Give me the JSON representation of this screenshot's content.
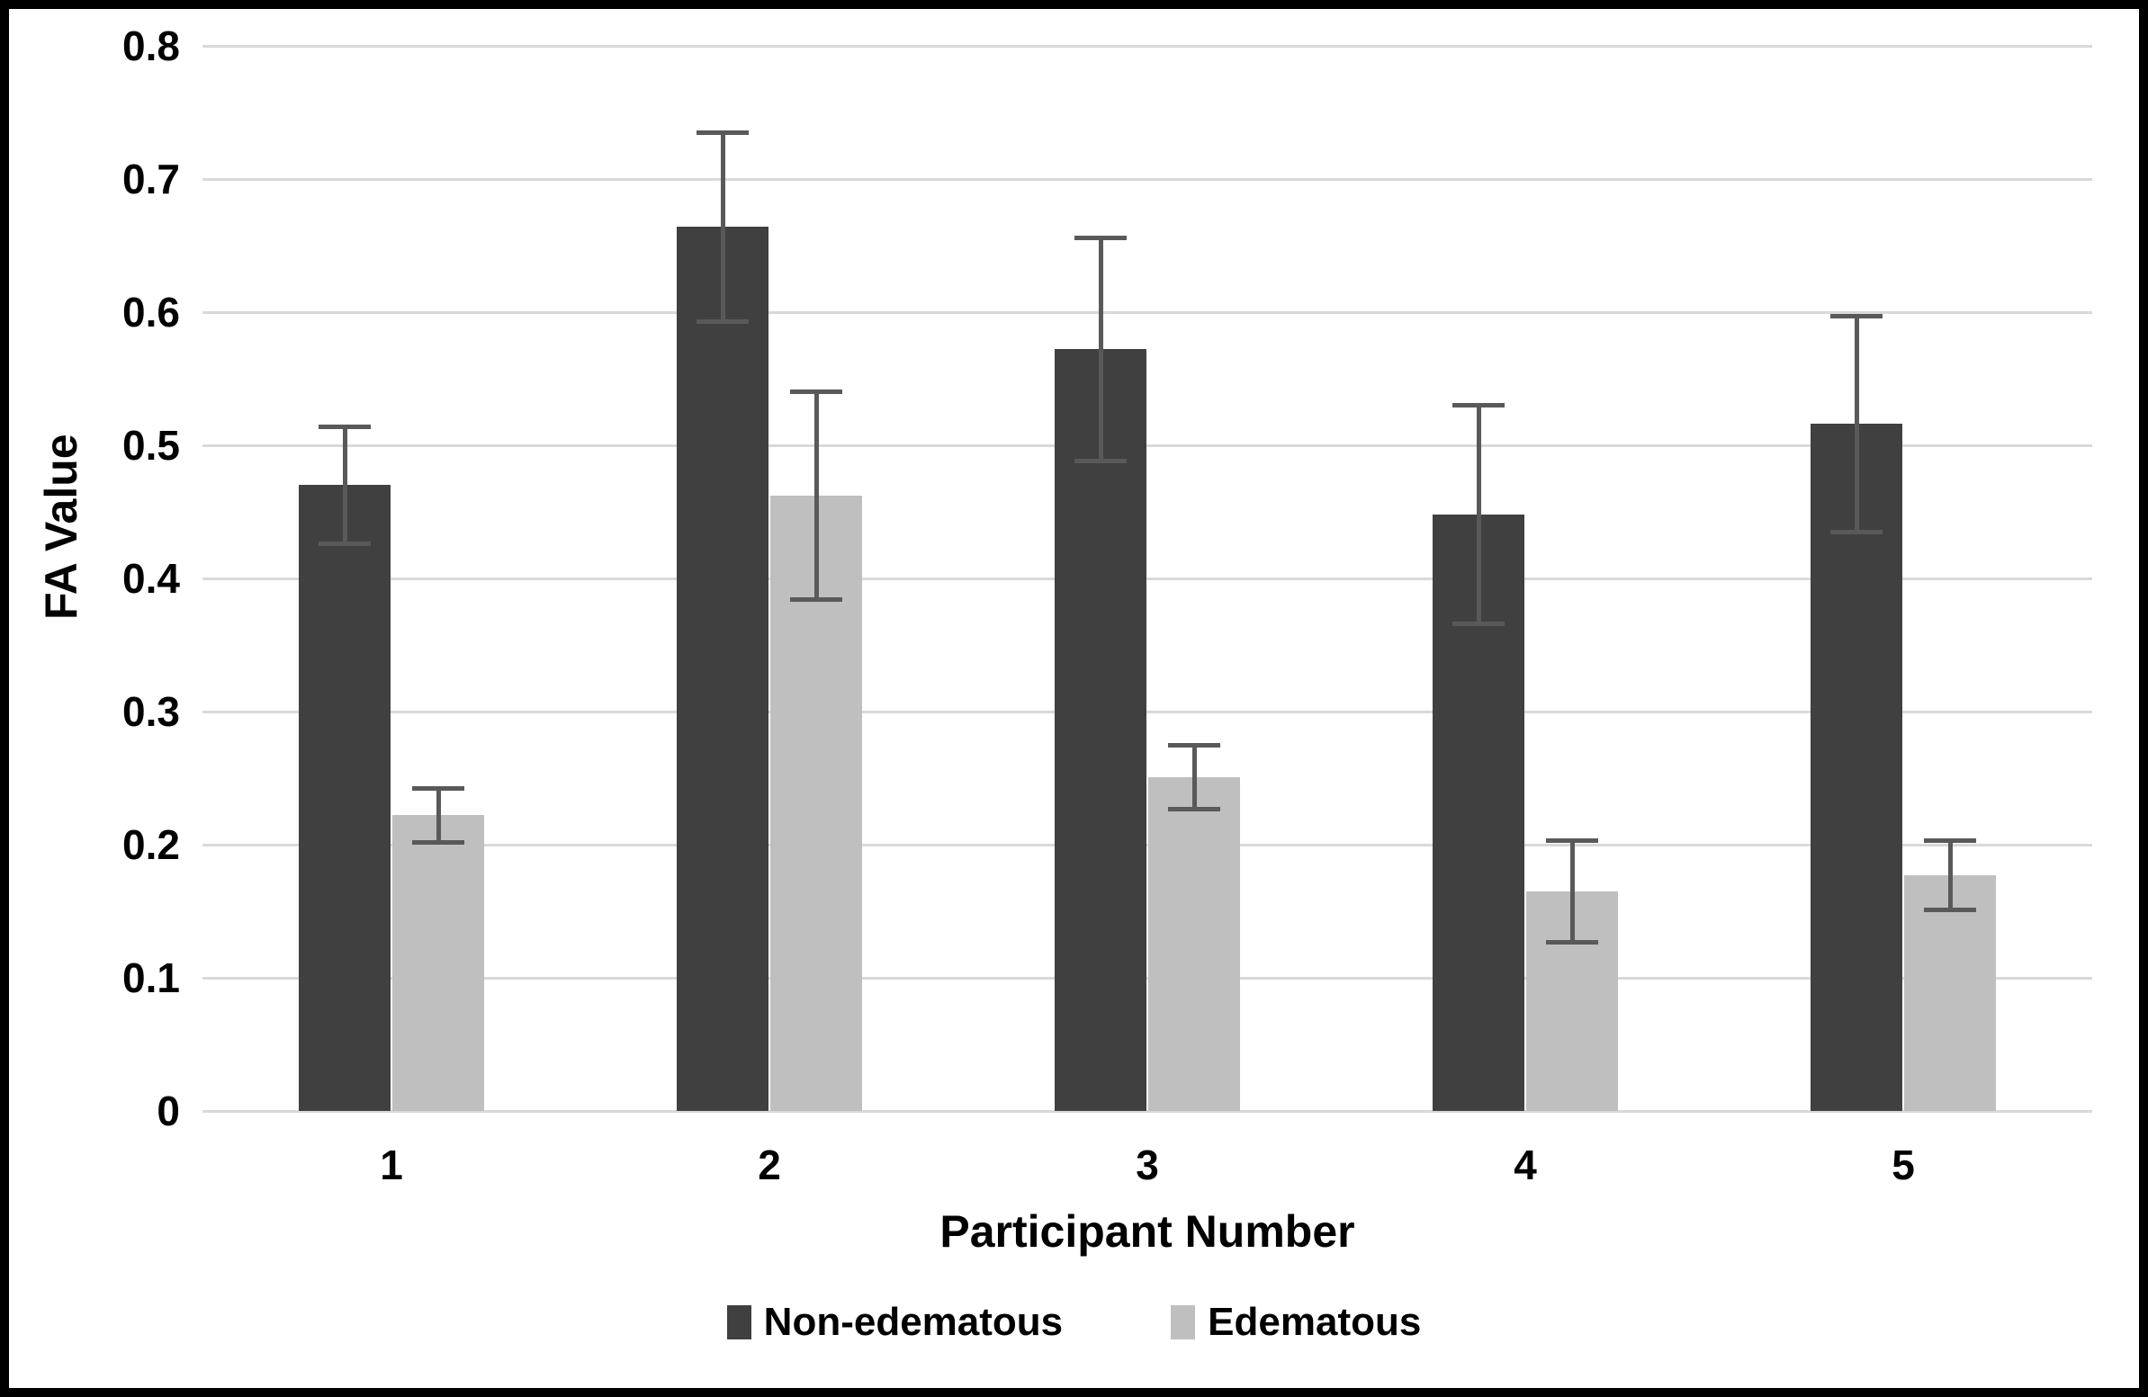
{
  "figure": {
    "background_color": "#ffffff",
    "border_color": "#000000",
    "text_color": "#000000"
  },
  "chart_data": {
    "type": "bar",
    "title": "",
    "categories": [
      "1",
      "2",
      "3",
      "4",
      "5"
    ],
    "series": [
      {
        "name": "Non-edematous",
        "color": "#404040",
        "values": [
          0.47,
          0.664,
          0.572,
          0.448,
          0.516
        ],
        "errors": [
          0.044,
          0.071,
          0.084,
          0.082,
          0.081
        ]
      },
      {
        "name": "Edematous",
        "color": "#bfbfbf",
        "values": [
          0.222,
          0.462,
          0.251,
          0.165,
          0.177
        ],
        "errors": [
          0.02,
          0.078,
          0.024,
          0.038,
          0.026
        ]
      }
    ],
    "xlabel": "Participant Number",
    "ylabel": "FA Value",
    "ylim": [
      0,
      0.8
    ],
    "ytick_step": 0.1,
    "yticks": [
      "0.8",
      "0.7",
      "0.6",
      "0.5",
      "0.4",
      "0.3",
      "0.2",
      "0.1",
      "0"
    ],
    "grid": true,
    "gridline_color": "#d9d9d9",
    "error_bar_color": "#595959",
    "legend_position": "bottom-center"
  }
}
